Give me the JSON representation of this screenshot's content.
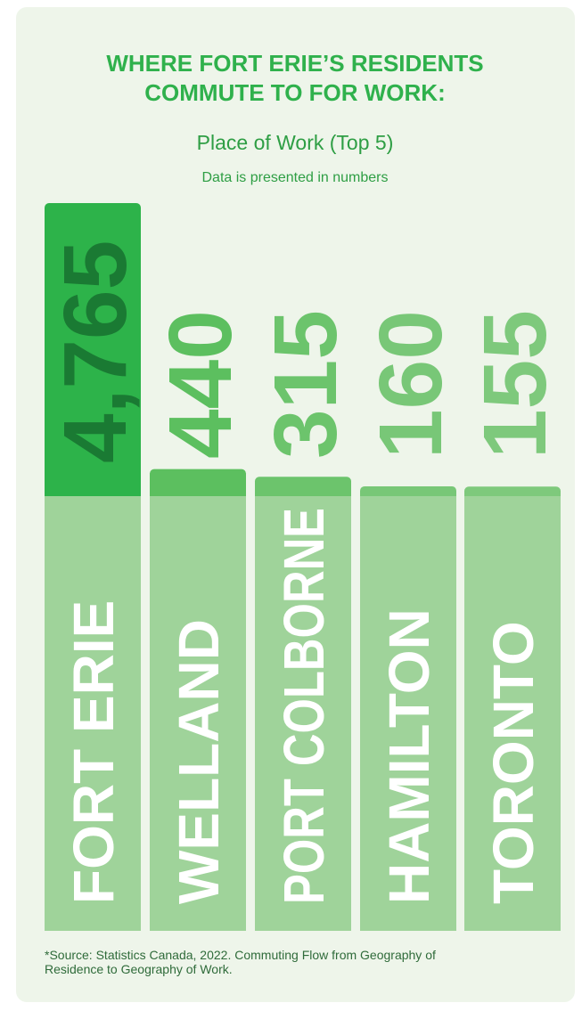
{
  "chart_data": {
    "type": "bar",
    "title": [
      "WHERE FORT ERIE’S RESIDENTS",
      "COMMUTE TO FOR WORK:"
    ],
    "subtitle": "Place of Work (Top 5)",
    "note": "Data is presented in numbers",
    "categories": [
      "FORT ERIE",
      "WELLAND",
      "PORT COLBORNE",
      "HAMILTON",
      "TORONTO"
    ],
    "values": [
      4765,
      440,
      315,
      160,
      155
    ],
    "value_labels": [
      "4,765",
      "440",
      "315",
      "160",
      "155"
    ],
    "colors": [
      "#2db34a",
      "#5cbf5f",
      "#6cc46c",
      "#78c777",
      "#7ec97c"
    ],
    "source": [
      "*Source: Statistics Canada, 2022. Commuting Flow from Geography of",
      "Residence to Geography of Work."
    ]
  }
}
